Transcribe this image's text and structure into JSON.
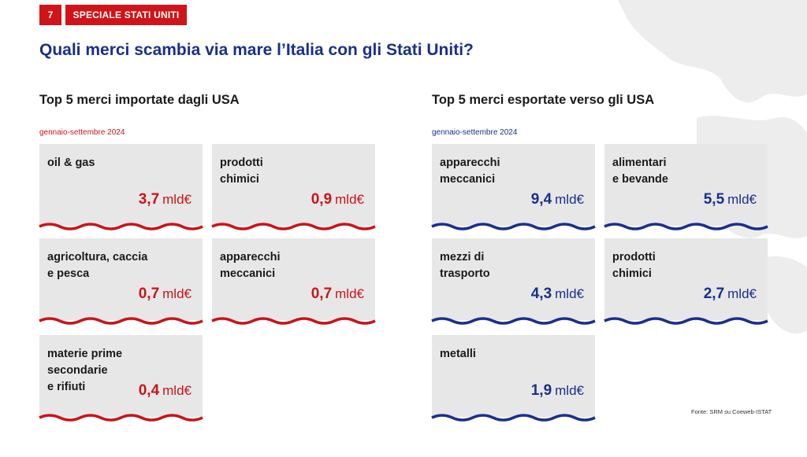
{
  "header": {
    "page_number": "7",
    "section": "SPECIALE STATI UNITI",
    "title": "Quali merci scambia via mare l’Italia con gli Stati Uniti?"
  },
  "colors": {
    "red": "#c8141a",
    "blue": "#1b2f8a",
    "card_bg": "#e7e7e7"
  },
  "imports": {
    "title": "Top 5 merci importate dagli USA",
    "period": "gennaio-settembre 2024",
    "unit": "mld€",
    "items": [
      {
        "label": "oil & gas",
        "value": "3,7"
      },
      {
        "label": "prodotti\nchimici",
        "value": "0,9"
      },
      {
        "label": "agricoltura, caccia\ne pesca",
        "value": "0,7"
      },
      {
        "label": "apparecchi\nmeccanici",
        "value": "0,7"
      },
      {
        "label": "materie prime\nsecondarie\ne rifiuti",
        "value": "0,4"
      }
    ]
  },
  "exports": {
    "title": "Top 5 merci esportate verso gli USA",
    "period": "gennaio-settembre 2024",
    "unit": "mld€",
    "items": [
      {
        "label": "apparecchi\nmeccanici",
        "value": "9,4"
      },
      {
        "label": "alimentari\ne bevande",
        "value": "5,5"
      },
      {
        "label": "mezzi di\ntrasporto",
        "value": "4,3"
      },
      {
        "label": "prodotti\nchimici",
        "value": "2,7"
      },
      {
        "label": "metalli",
        "value": "1,9"
      }
    ]
  },
  "source": "Fonte: SRM su Coeweb-ISTAT"
}
